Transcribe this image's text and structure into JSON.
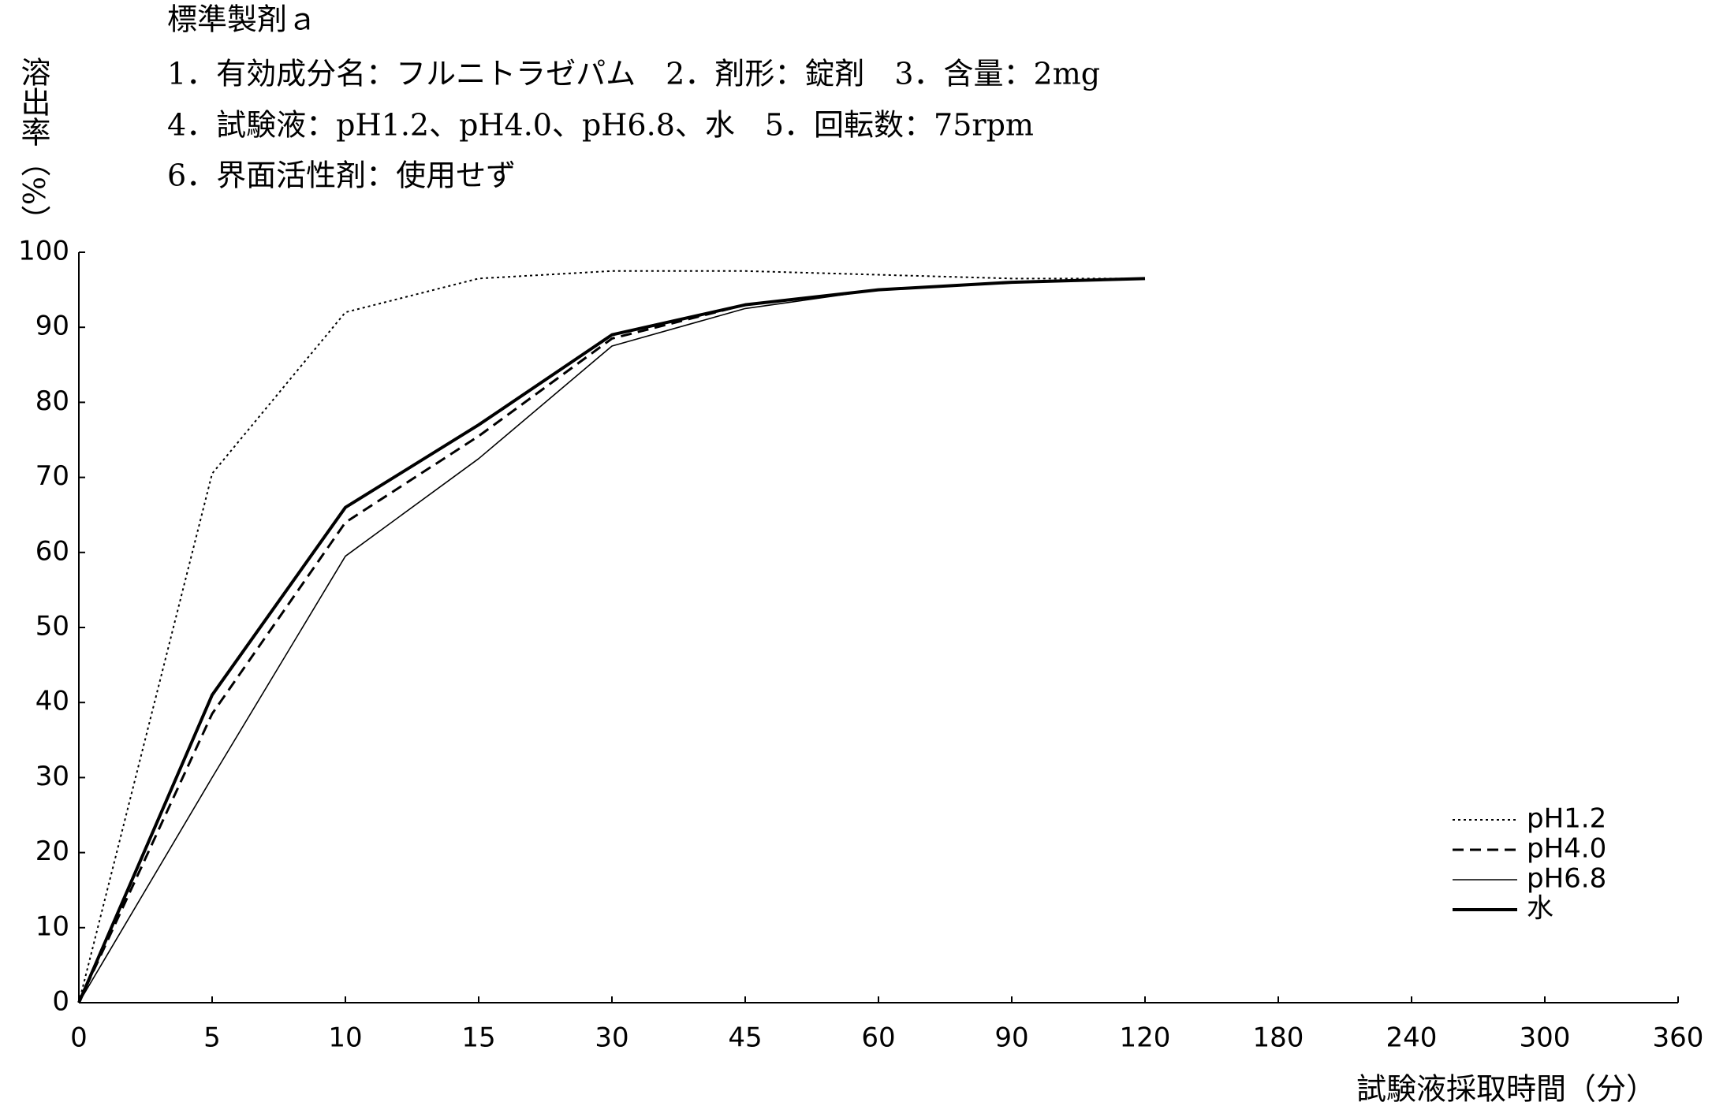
{
  "chart_data": {
    "type": "line",
    "title": "標準製剤ａ",
    "subtitle": [
      "1．有効成分名：フルニトラゼパム　2．剤形：錠剤　3．含量：2mg",
      "4．試験液：pH1.2、pH4.0、pH6.8、水　5．回転数：75rpm",
      "6．界面活性剤：使用せず"
    ],
    "y_label": "溶出率（%）",
    "x_label": "試験液採取時間（分）",
    "categories": [
      "0",
      "5",
      "10",
      "15",
      "30",
      "45",
      "60",
      "90",
      "120",
      "180",
      "240",
      "300",
      "360"
    ],
    "series": [
      {
        "name": "pH1.2",
        "color": "#000000",
        "style": "dotted",
        "values": [
          0,
          70.5,
          92,
          96.5,
          97.5,
          97.5,
          97,
          96.5,
          96.5,
          null,
          null,
          null,
          null
        ]
      },
      {
        "name": "pH4.0",
        "color": "#000000",
        "style": "dashed",
        "values": [
          0,
          38.5,
          64,
          75.5,
          88.5,
          93,
          95,
          96,
          96.5,
          null,
          null,
          null,
          null
        ]
      },
      {
        "name": "pH6.8",
        "color": "#000000",
        "style": "thin",
        "values": [
          0,
          30,
          59.5,
          72.5,
          87.5,
          92.5,
          95,
          96,
          96.5,
          null,
          null,
          null,
          null
        ]
      },
      {
        "name": "水",
        "color": "#000000",
        "style": "bold",
        "values": [
          0,
          41,
          66,
          77,
          89,
          93,
          95,
          96,
          96.5,
          null,
          null,
          null,
          null
        ]
      }
    ],
    "ylim": [
      0,
      100
    ],
    "yticks": [
      0,
      10,
      20,
      30,
      40,
      50,
      60,
      70,
      80,
      90,
      100
    ],
    "grid": false,
    "legend": "lower right"
  }
}
